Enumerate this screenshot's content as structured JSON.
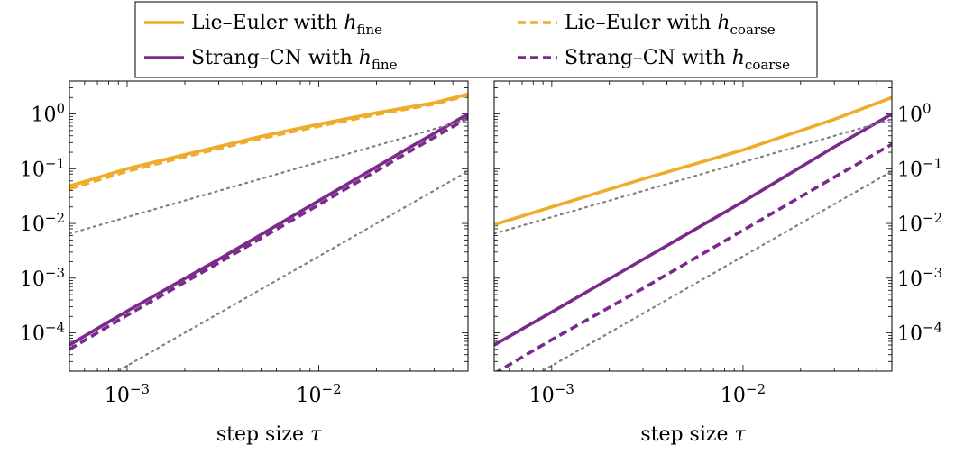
{
  "chart_data": [
    {
      "type": "line",
      "xscale": "log",
      "yscale": "log",
      "xlim": [
        0.0005,
        0.06
      ],
      "ylim": [
        2e-05,
        4
      ],
      "xticks": [
        0.001,
        0.01
      ],
      "yticks": [
        0.0001,
        0.001,
        0.01,
        0.1,
        1
      ],
      "xlabel": "step size τ",
      "ylabel": "",
      "yaxis_side": "left",
      "series": [
        {
          "name": "Lie–Euler with h_fine",
          "color": "#EFAB2A",
          "dash": "solid",
          "x": [
            0.0005,
            0.001,
            0.002,
            0.005,
            0.01,
            0.02,
            0.04,
            0.06
          ],
          "y": [
            0.048,
            0.1,
            0.18,
            0.39,
            0.65,
            1.05,
            1.6,
            2.3
          ]
        },
        {
          "name": "Lie–Euler with h_coarse",
          "color": "#EFAB2A",
          "dash": "dashed",
          "x": [
            0.0005,
            0.001,
            0.002,
            0.005,
            0.01,
            0.02,
            0.04,
            0.06
          ],
          "y": [
            0.043,
            0.09,
            0.165,
            0.36,
            0.6,
            0.98,
            1.52,
            2.2
          ]
        },
        {
          "name": "Strang–CN with h_fine",
          "color": "#7B2A8C",
          "dash": "solid",
          "x": [
            0.0005,
            0.001,
            0.003,
            0.01,
            0.03,
            0.06
          ],
          "y": [
            6e-05,
            0.00025,
            0.0022,
            0.026,
            0.25,
            1.0
          ]
        },
        {
          "name": "Strang–CN with h_coarse",
          "color": "#7B2A8C",
          "dash": "dashed",
          "x": [
            0.0005,
            0.001,
            0.003,
            0.01,
            0.03,
            0.06
          ],
          "y": [
            5e-05,
            0.00021,
            0.0019,
            0.022,
            0.21,
            0.85
          ]
        },
        {
          "name": "",
          "color": "#808080",
          "dash": "dotted",
          "x": [
            0.0005,
            0.06
          ],
          "y": [
            0.0065,
            0.8
          ]
        },
        {
          "name": "",
          "color": "#808080",
          "dash": "dotted",
          "x": [
            0.0005,
            0.06
          ],
          "y": [
            6.3e-06,
            0.09
          ]
        }
      ]
    },
    {
      "type": "line",
      "xscale": "log",
      "yscale": "log",
      "xlim": [
        0.0005,
        0.06
      ],
      "ylim": [
        2e-05,
        4
      ],
      "xticks": [
        0.001,
        0.01
      ],
      "yticks": [
        0.0001,
        0.001,
        0.01,
        0.1,
        1
      ],
      "xlabel": "step size τ",
      "ylabel": "",
      "yaxis_side": "right",
      "series": [
        {
          "name": "Lie–Euler with h_fine",
          "color": "#EFAB2A",
          "dash": "solid",
          "x": [
            0.0005,
            0.001,
            0.003,
            0.01,
            0.03,
            0.06
          ],
          "y": [
            0.0095,
            0.02,
            0.065,
            0.22,
            0.8,
            2.0
          ]
        },
        {
          "name": "Strang–CN with h_fine",
          "color": "#7B2A8C",
          "dash": "solid",
          "x": [
            0.0005,
            0.001,
            0.003,
            0.01,
            0.03,
            0.06
          ],
          "y": [
            6e-05,
            0.00024,
            0.0022,
            0.025,
            0.25,
            1.0
          ]
        },
        {
          "name": "Strang–CN with h_coarse",
          "color": "#7B2A8C",
          "dash": "dashed",
          "x": [
            0.0005,
            0.001,
            0.003,
            0.01,
            0.03,
            0.06
          ],
          "y": [
            1.8e-05,
            7.5e-05,
            0.00065,
            0.0075,
            0.07,
            0.28
          ]
        },
        {
          "name": "",
          "color": "#808080",
          "dash": "dotted",
          "x": [
            0.0005,
            0.06
          ],
          "y": [
            0.0065,
            0.8
          ]
        },
        {
          "name": "",
          "color": "#808080",
          "dash": "dotted",
          "x": [
            0.0005,
            0.06
          ],
          "y": [
            6.3e-06,
            0.09
          ]
        }
      ]
    }
  ],
  "legend": {
    "placement": "top-center",
    "entries": [
      {
        "label": "Lie–Euler with ",
        "sym": "h",
        "sub": "fine",
        "color": "#EFAB2A",
        "dash": "solid"
      },
      {
        "label": "Lie–Euler with ",
        "sym": "h",
        "sub": "coarse",
        "color": "#EFAB2A",
        "dash": "dashed"
      },
      {
        "label": "Strang–CN with ",
        "sym": "h",
        "sub": "fine",
        "color": "#7B2A8C",
        "dash": "solid"
      },
      {
        "label": "Strang–CN with ",
        "sym": "h",
        "sub": "coarse",
        "color": "#7B2A8C",
        "dash": "dashed"
      }
    ]
  }
}
